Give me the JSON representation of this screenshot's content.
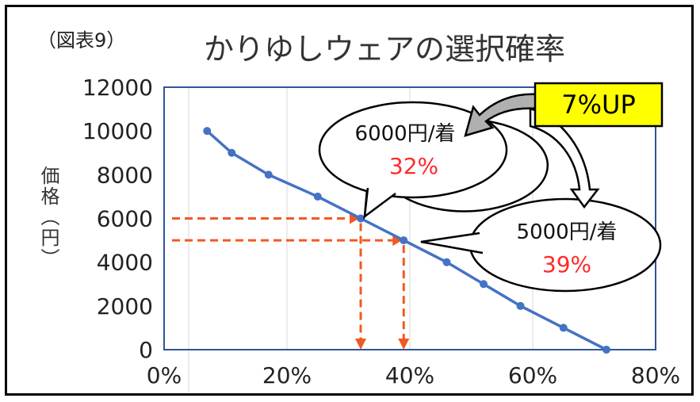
{
  "figure_tag": "（図表9）",
  "chart_data": {
    "type": "line",
    "title": "かりゆしウェアの選択確率",
    "xlabel": "",
    "ylabel": "価格（円）",
    "xlim": [
      0,
      80
    ],
    "ylim": [
      0,
      12000
    ],
    "x_ticks": [
      "0%",
      "20%",
      "40%",
      "60%",
      "80%"
    ],
    "y_ticks": [
      "0",
      "2000",
      "4000",
      "6000",
      "8000",
      "10000",
      "12000"
    ],
    "grid": "vertical",
    "series": [
      {
        "color": "#4472c4",
        "points": [
          {
            "x": 7,
            "y": 10000
          },
          {
            "x": 11,
            "y": 9000
          },
          {
            "x": 17,
            "y": 8000
          },
          {
            "x": 25,
            "y": 7000
          },
          {
            "x": 32,
            "y": 6000
          },
          {
            "x": 39,
            "y": 5000
          },
          {
            "x": 46,
            "y": 4000
          },
          {
            "x": 52,
            "y": 3000
          },
          {
            "x": 58,
            "y": 2000
          },
          {
            "x": 65,
            "y": 1000
          },
          {
            "x": 72,
            "y": 0
          }
        ]
      }
    ],
    "guides": [
      {
        "x": 32,
        "y": 6000,
        "color": "#f05a22"
      },
      {
        "x": 39,
        "y": 5000,
        "color": "#f05a22"
      }
    ],
    "callouts": [
      {
        "line1": "6000円/着",
        "line2": "32%",
        "line2_color": "#ff2a2a"
      },
      {
        "line1": "5000円/着",
        "line2": "39%",
        "line2_color": "#ff2a2a"
      }
    ],
    "highlight": {
      "text": "7%UP",
      "bg": "#ffff00"
    }
  }
}
